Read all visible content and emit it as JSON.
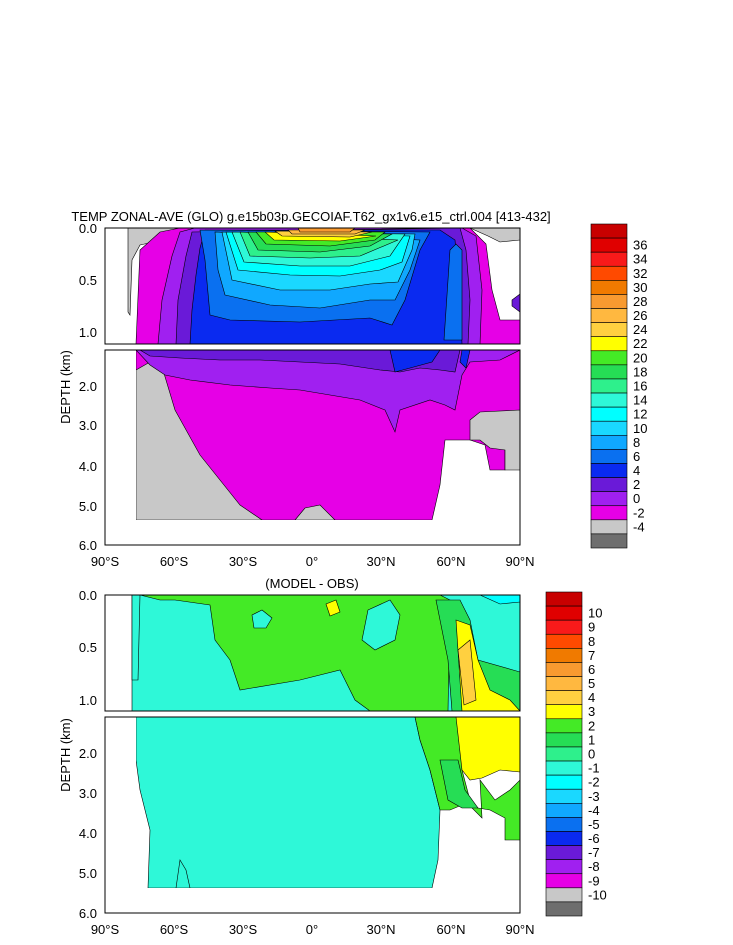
{
  "chart_data": [
    {
      "type": "heatmap",
      "title": "TEMP ZONAL-AVE (GLO) g.e15b03p.GECOIAF.T62_gx1v6.e15_ctrl.004 [413-432]",
      "ylabel": "DEPTH (km)",
      "x_ticks": [
        "90°S",
        "60°S",
        "30°S",
        "0°",
        "30°N",
        "60°N",
        "90°N"
      ],
      "upper_y_ticks": [
        "0.0",
        "0.5",
        "1.0"
      ],
      "lower_y_ticks": [
        "2.0",
        "3.0",
        "4.0",
        "5.0",
        "6.0"
      ],
      "xlim": [
        -90,
        90
      ],
      "ylim": [
        6.0,
        0.0
      ],
      "colorbar": {
        "levels": [
          "36",
          "34",
          "32",
          "30",
          "28",
          "26",
          "24",
          "22",
          "20",
          "18",
          "16",
          "14",
          "12",
          "10",
          "8",
          "6",
          "4",
          "2",
          "0",
          "-2",
          "-4"
        ],
        "colors": [
          "#c80000",
          "#e00000",
          "#f81a1a",
          "#ff4a00",
          "#f07a00",
          "#f89a30",
          "#ffb840",
          "#ffd040",
          "#ffff00",
          "#44ea26",
          "#26dd55",
          "#2ef08c",
          "#2ef8d8",
          "#00ffff",
          "#1ad8ff",
          "#10a8ff",
          "#0a70f0",
          "#0a2af0",
          "#6a1ad8",
          "#a020f0",
          "#e600e6",
          "#c8c8c8",
          "#6e6e6e"
        ]
      }
    },
    {
      "type": "heatmap",
      "title": "(MODEL - OBS)",
      "ylabel": "DEPTH (km)",
      "x_ticks": [
        "90°S",
        "60°S",
        "30°S",
        "0°",
        "30°N",
        "60°N",
        "90°N"
      ],
      "upper_y_ticks": [
        "0.0",
        "0.5",
        "1.0"
      ],
      "lower_y_ticks": [
        "2.0",
        "3.0",
        "4.0",
        "5.0",
        "6.0"
      ],
      "xlim": [
        -90,
        90
      ],
      "ylim": [
        6.0,
        0.0
      ],
      "colorbar": {
        "levels": [
          "10",
          "9",
          "8",
          "7",
          "6",
          "5",
          "4",
          "3",
          "2",
          "1",
          "0",
          "-1",
          "-2",
          "-3",
          "-4",
          "-5",
          "-6",
          "-7",
          "-8",
          "-9",
          "-10"
        ],
        "colors": [
          "#c80000",
          "#e00000",
          "#f81a1a",
          "#ff4a00",
          "#f07a00",
          "#f89a30",
          "#ffb840",
          "#ffd040",
          "#ffff00",
          "#44ea26",
          "#26dd55",
          "#2ef08c",
          "#2ef8d8",
          "#00ffff",
          "#1ad8ff",
          "#10a8ff",
          "#0a70f0",
          "#0a2af0",
          "#6a1ad8",
          "#a020f0",
          "#e600e6",
          "#c8c8c8",
          "#6e6e6e"
        ]
      }
    }
  ]
}
